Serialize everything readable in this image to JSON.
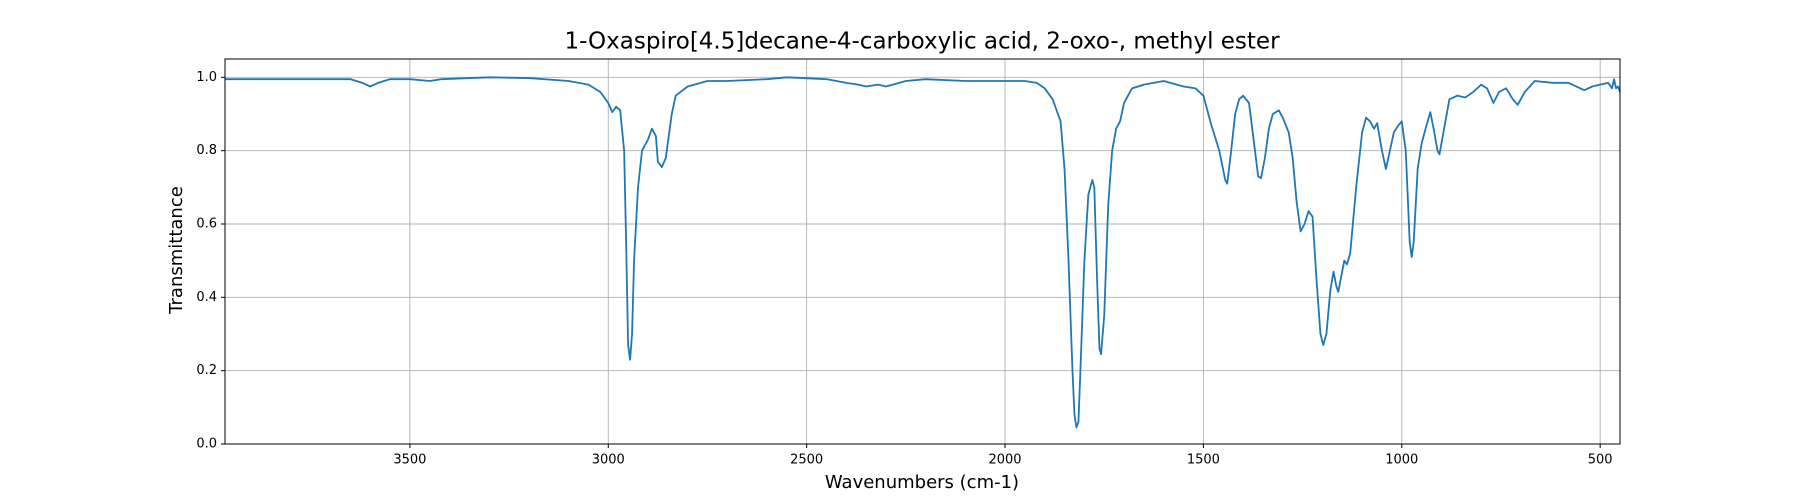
{
  "chart_data": {
    "type": "line",
    "title": "1-Oxaspiro[4.5]decane-4-carboxylic acid, 2-oxo-, methyl ester",
    "x_label": "Wavenumbers (cm-1)",
    "y_label": "Transmittance",
    "color": "#1f77b4",
    "x": [
      3966,
      3900,
      3800,
      3700,
      3650,
      3620,
      3600,
      3580,
      3550,
      3500,
      3450,
      3420,
      3300,
      3200,
      3100,
      3050,
      3020,
      3000,
      2990,
      2980,
      2970,
      2960,
      2955,
      2950,
      2945,
      2940,
      2935,
      2925,
      2915,
      2900,
      2890,
      2880,
      2875,
      2865,
      2855,
      2840,
      2830,
      2800,
      2750,
      2700,
      2600,
      2550,
      2450,
      2400,
      2370,
      2350,
      2320,
      2300,
      2250,
      2200,
      2100,
      2000,
      1950,
      1920,
      1900,
      1880,
      1860,
      1850,
      1840,
      1830,
      1825,
      1820,
      1815,
      1810,
      1800,
      1790,
      1780,
      1775,
      1768,
      1762,
      1758,
      1750,
      1740,
      1730,
      1720,
      1710,
      1700,
      1690,
      1680,
      1650,
      1600,
      1550,
      1520,
      1500,
      1480,
      1460,
      1445,
      1440,
      1430,
      1420,
      1410,
      1400,
      1385,
      1370,
      1362,
      1355,
      1345,
      1335,
      1325,
      1310,
      1300,
      1285,
      1275,
      1265,
      1255,
      1245,
      1235,
      1225,
      1215,
      1205,
      1198,
      1190,
      1180,
      1172,
      1165,
      1160,
      1152,
      1145,
      1138,
      1130,
      1115,
      1100,
      1090,
      1080,
      1070,
      1062,
      1050,
      1040,
      1030,
      1020,
      1008,
      1000,
      990,
      980,
      975,
      970,
      960,
      950,
      940,
      928,
      918,
      910,
      905,
      895,
      880,
      860,
      840,
      820,
      800,
      785,
      769,
      755,
      737,
      720,
      708,
      690,
      665,
      620,
      580,
      540,
      520,
      500,
      480,
      470,
      465,
      460,
      455,
      450
    ],
    "values": [
      0.995,
      0.995,
      0.995,
      0.995,
      0.995,
      0.985,
      0.975,
      0.985,
      0.995,
      0.995,
      0.99,
      0.995,
      1.0,
      0.998,
      0.99,
      0.98,
      0.96,
      0.93,
      0.905,
      0.92,
      0.91,
      0.8,
      0.55,
      0.27,
      0.23,
      0.3,
      0.5,
      0.7,
      0.8,
      0.83,
      0.86,
      0.84,
      0.77,
      0.755,
      0.78,
      0.9,
      0.95,
      0.975,
      0.99,
      0.99,
      0.995,
      1.0,
      0.995,
      0.985,
      0.98,
      0.975,
      0.98,
      0.975,
      0.99,
      0.995,
      0.99,
      0.99,
      0.99,
      0.985,
      0.97,
      0.94,
      0.88,
      0.75,
      0.5,
      0.2,
      0.08,
      0.045,
      0.06,
      0.2,
      0.5,
      0.68,
      0.72,
      0.7,
      0.45,
      0.26,
      0.245,
      0.35,
      0.65,
      0.8,
      0.86,
      0.88,
      0.93,
      0.95,
      0.97,
      0.98,
      0.99,
      0.975,
      0.97,
      0.95,
      0.87,
      0.8,
      0.72,
      0.71,
      0.8,
      0.9,
      0.94,
      0.95,
      0.93,
      0.8,
      0.73,
      0.725,
      0.78,
      0.86,
      0.9,
      0.91,
      0.89,
      0.85,
      0.78,
      0.66,
      0.58,
      0.6,
      0.635,
      0.62,
      0.45,
      0.3,
      0.27,
      0.3,
      0.42,
      0.47,
      0.43,
      0.415,
      0.46,
      0.5,
      0.49,
      0.52,
      0.7,
      0.85,
      0.89,
      0.88,
      0.86,
      0.875,
      0.8,
      0.75,
      0.8,
      0.85,
      0.87,
      0.88,
      0.8,
      0.55,
      0.51,
      0.55,
      0.75,
      0.82,
      0.86,
      0.905,
      0.85,
      0.8,
      0.79,
      0.85,
      0.94,
      0.95,
      0.945,
      0.96,
      0.98,
      0.97,
      0.93,
      0.96,
      0.97,
      0.94,
      0.925,
      0.96,
      0.99,
      0.985,
      0.985,
      0.965,
      0.975,
      0.98,
      0.985,
      0.97,
      0.995,
      0.97,
      0.975,
      0.96
    ],
    "xlim": [
      3966,
      450
    ],
    "ylim": [
      0,
      1.05
    ],
    "xticks": [
      3500,
      3000,
      2500,
      2000,
      1500,
      1000,
      500
    ],
    "yticks": [
      {
        "value": 0,
        "label": "0.0"
      },
      {
        "value": 0.2,
        "label": "0.2"
      },
      {
        "value": 0.4,
        "label": "0.4"
      },
      {
        "value": 0.6,
        "label": "0.6"
      },
      {
        "value": 0.8,
        "label": "0.8"
      },
      {
        "value": 1,
        "label": "1.0"
      }
    ],
    "grid": true
  }
}
